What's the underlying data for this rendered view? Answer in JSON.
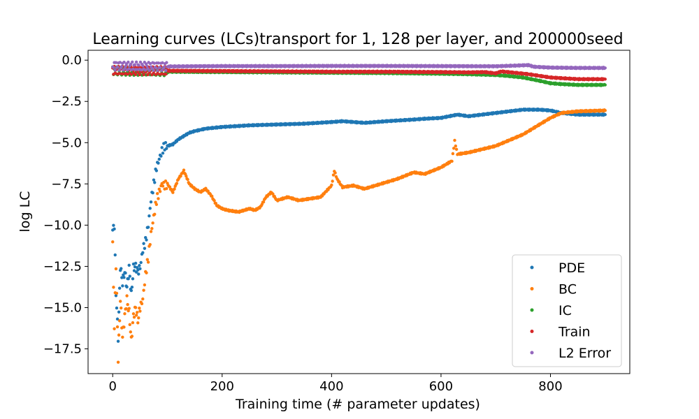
{
  "chart_data": {
    "type": "scatter",
    "title": "Learning curves (LCs)transport for 1, 128 per layer, and 200000seed",
    "xlabel": "Training time (# parameter updates)",
    "ylabel": "log LC",
    "xlim": [
      -45,
      945
    ],
    "ylim": [
      -19.0,
      0.6
    ],
    "xticks": [
      0,
      200,
      400,
      600,
      800
    ],
    "xtick_labels": [
      "0",
      "200",
      "400",
      "600",
      "800"
    ],
    "yticks": [
      0.0,
      -2.5,
      -5.0,
      -7.5,
      -10.0,
      -12.5,
      -15.0,
      -17.5
    ],
    "ytick_labels": [
      "0.0",
      "−2.5",
      "−5.0",
      "−7.5",
      "−10.0",
      "−12.5",
      "−15.0",
      "−17.5"
    ],
    "grid": false,
    "legend_position": "lower-right",
    "series": [
      {
        "name": "PDE",
        "color": "#1f77b4",
        "x": [
          0,
          3,
          6,
          10,
          14,
          18,
          22,
          26,
          30,
          34,
          38,
          42,
          46,
          50,
          55,
          60,
          65,
          70,
          75,
          80,
          85,
          90,
          95,
          100,
          110,
          120,
          130,
          140,
          150,
          170,
          200,
          250,
          300,
          350,
          400,
          420,
          440,
          460,
          500,
          550,
          570,
          600,
          630,
          650,
          700,
          750,
          780,
          800,
          820,
          850,
          900
        ],
        "y": [
          -10.3,
          -10.0,
          -14.1,
          -16.8,
          -12.5,
          -13.5,
          -12.8,
          -13.8,
          -12.6,
          -14.2,
          -12.6,
          -12.5,
          -12.8,
          -12.6,
          -11.5,
          -11.0,
          -10.0,
          -8.5,
          -7.5,
          -6.5,
          -6.0,
          -5.5,
          -5.2,
          -5.2,
          -5.1,
          -4.8,
          -4.6,
          -4.4,
          -4.3,
          -4.15,
          -4.05,
          -3.95,
          -3.9,
          -3.85,
          -3.75,
          -3.7,
          -3.75,
          -3.8,
          -3.7,
          -3.6,
          -3.55,
          -3.5,
          -3.3,
          -3.4,
          -3.2,
          -3.0,
          -3.0,
          -3.05,
          -3.2,
          -3.3,
          -3.3
        ]
      },
      {
        "name": "BC",
        "color": "#ff7f0e",
        "x": [
          0,
          3,
          6,
          10,
          14,
          18,
          22,
          26,
          30,
          34,
          38,
          42,
          46,
          50,
          55,
          60,
          65,
          70,
          75,
          80,
          85,
          90,
          95,
          100,
          110,
          120,
          130,
          140,
          150,
          160,
          170,
          180,
          190,
          200,
          210,
          220,
          230,
          240,
          250,
          260,
          270,
          280,
          290,
          300,
          320,
          340,
          360,
          380,
          400,
          405,
          410,
          420,
          440,
          460,
          480,
          500,
          520,
          550,
          570,
          600,
          620,
          625,
          630,
          650,
          700,
          750,
          780,
          800,
          820,
          850,
          900
        ],
        "y": [
          -11.2,
          -16.2,
          -12.4,
          -18.1,
          -14.5,
          -16.8,
          -15.5,
          -14.5,
          -15.3,
          -17.0,
          -15.5,
          -15.0,
          -15.8,
          -15.0,
          -14.5,
          -13.0,
          -12.0,
          -10.5,
          -9.5,
          -8.5,
          -8.0,
          -7.5,
          -7.6,
          -7.5,
          -8.0,
          -7.2,
          -6.7,
          -7.5,
          -7.8,
          -8.0,
          -7.8,
          -8.2,
          -8.8,
          -9.0,
          -9.1,
          -9.15,
          -9.2,
          -9.1,
          -9.0,
          -9.1,
          -8.9,
          -8.3,
          -8.0,
          -8.5,
          -8.3,
          -8.5,
          -8.4,
          -8.3,
          -7.6,
          -6.7,
          -7.2,
          -7.7,
          -7.6,
          -7.8,
          -7.6,
          -7.4,
          -7.2,
          -6.8,
          -6.9,
          -6.5,
          -6.1,
          -4.9,
          -5.7,
          -5.6,
          -5.2,
          -4.5,
          -3.9,
          -3.5,
          -3.2,
          -3.1,
          -3.05
        ]
      },
      {
        "name": "IC",
        "color": "#2ca02c",
        "x": [
          0,
          100,
          200,
          300,
          400,
          500,
          600,
          650,
          700,
          720,
          750,
          780,
          800,
          820,
          850,
          900
        ],
        "y": [
          -0.65,
          -0.7,
          -0.72,
          -0.74,
          -0.76,
          -0.78,
          -0.82,
          -0.85,
          -0.9,
          -0.95,
          -1.05,
          -1.25,
          -1.4,
          -1.45,
          -1.5,
          -1.5
        ]
      },
      {
        "name": "Train",
        "color": "#d62728",
        "x": [
          0,
          100,
          200,
          300,
          400,
          500,
          600,
          650,
          680,
          700,
          710,
          740,
          760,
          780,
          800,
          850,
          900
        ],
        "y": [
          -0.62,
          -0.64,
          -0.66,
          -0.68,
          -0.7,
          -0.7,
          -0.72,
          -0.74,
          -0.72,
          -0.8,
          -0.68,
          -0.78,
          -0.85,
          -0.95,
          -1.05,
          -1.15,
          -1.15
        ]
      },
      {
        "name": "L2 Error",
        "color": "#9467bd",
        "x": [
          0,
          100,
          200,
          300,
          400,
          500,
          600,
          700,
          760,
          770,
          800,
          850,
          900
        ],
        "y": [
          -0.35,
          -0.38,
          -0.36,
          -0.36,
          -0.35,
          -0.35,
          -0.36,
          -0.37,
          -0.3,
          -0.4,
          -0.45,
          -0.47,
          -0.47
        ]
      }
    ]
  }
}
